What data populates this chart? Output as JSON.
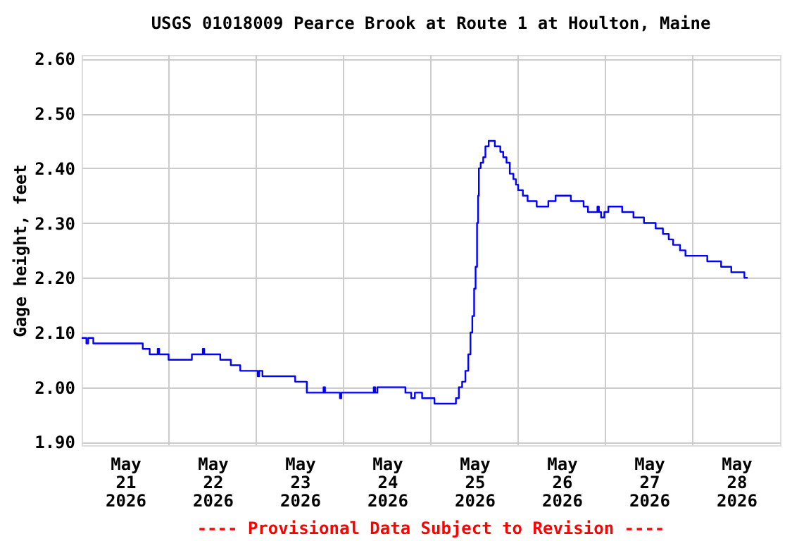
{
  "chart_data": {
    "type": "step",
    "title": "USGS 01018009 Pearce Brook at Route 1 at Houlton, Maine",
    "ylabel": "Gage height, feet",
    "annotations": [
      "---- Provisional Data Subject to Revision ----"
    ],
    "x": [
      "2026-05-21T00:00",
      "2026-05-21T01:18",
      "2026-05-21T01:48",
      "2026-05-21T03:12",
      "2026-05-21T16:48",
      "2026-05-21T18:42",
      "2026-05-21T20:54",
      "2026-05-21T21:18",
      "2026-05-21T23:54",
      "2026-05-22T06:18",
      "2026-05-22T09:18",
      "2026-05-22T09:42",
      "2026-05-22T14:06",
      "2026-05-22T17:00",
      "2026-05-22T19:36",
      "2026-05-23T00:24",
      "2026-05-23T00:48",
      "2026-05-23T01:42",
      "2026-05-23T10:42",
      "2026-05-23T13:54",
      "2026-05-23T18:30",
      "2026-05-23T18:54",
      "2026-05-23T23:00",
      "2026-05-23T23:24",
      "2026-05-24T08:18",
      "2026-05-24T08:42",
      "2026-05-24T09:18",
      "2026-05-24T17:00",
      "2026-05-24T18:36",
      "2026-05-24T19:36",
      "2026-05-24T21:36",
      "2026-05-25T01:00",
      "2026-05-25T06:54",
      "2026-05-25T07:42",
      "2026-05-25T08:36",
      "2026-05-25T09:30",
      "2026-05-25T10:18",
      "2026-05-25T10:54",
      "2026-05-25T11:24",
      "2026-05-25T11:54",
      "2026-05-25T12:18",
      "2026-05-25T12:42",
      "2026-05-25T13:00",
      "2026-05-25T13:12",
      "2026-05-25T13:42",
      "2026-05-25T14:24",
      "2026-05-25T15:00",
      "2026-05-25T15:54",
      "2026-05-25T17:36",
      "2026-05-25T19:06",
      "2026-05-25T19:54",
      "2026-05-25T20:48",
      "2026-05-25T21:42",
      "2026-05-25T22:42",
      "2026-05-25T23:24",
      "2026-05-26T00:00",
      "2026-05-26T01:18",
      "2026-05-26T02:36",
      "2026-05-26T05:06",
      "2026-05-26T08:18",
      "2026-05-26T10:18",
      "2026-05-26T14:30",
      "2026-05-26T18:00",
      "2026-05-26T19:12",
      "2026-05-26T21:48",
      "2026-05-26T22:12",
      "2026-05-26T22:48",
      "2026-05-26T23:42",
      "2026-05-27T00:48",
      "2026-05-27T04:36",
      "2026-05-27T07:42",
      "2026-05-27T10:36",
      "2026-05-27T13:48",
      "2026-05-27T15:48",
      "2026-05-27T17:24",
      "2026-05-27T18:36",
      "2026-05-27T20:30",
      "2026-05-27T22:00",
      "2026-05-28T04:00",
      "2026-05-28T07:48",
      "2026-05-28T10:36",
      "2026-05-28T14:12",
      "2026-05-28T15:06"
    ],
    "series": [
      {
        "color": "#0000ff",
        "values": [
          2.09,
          2.08,
          2.09,
          2.08,
          2.07,
          2.06,
          2.07,
          2.06,
          2.05,
          2.06,
          2.07,
          2.06,
          2.05,
          2.04,
          2.03,
          2.02,
          2.03,
          2.02,
          2.01,
          1.99,
          2.0,
          1.99,
          1.98,
          1.99,
          2.0,
          1.99,
          2.0,
          1.99,
          1.98,
          1.99,
          1.98,
          1.97,
          1.98,
          2.0,
          2.01,
          2.03,
          2.06,
          2.1,
          2.13,
          2.18,
          2.22,
          2.3,
          2.35,
          2.4,
          2.41,
          2.42,
          2.44,
          2.45,
          2.44,
          2.43,
          2.42,
          2.41,
          2.39,
          2.38,
          2.37,
          2.36,
          2.35,
          2.34,
          2.33,
          2.34,
          2.35,
          2.34,
          2.33,
          2.32,
          2.33,
          2.32,
          2.31,
          2.32,
          2.33,
          2.32,
          2.31,
          2.3,
          2.29,
          2.28,
          2.27,
          2.26,
          2.25,
          2.24,
          2.23,
          2.22,
          2.21,
          2.2,
          2.2
        ]
      }
    ],
    "xlim": [
      "2026-05-21T00:00",
      "2026-05-29T00:00"
    ],
    "xticks": [
      {
        "value": "2026-05-21T12:00",
        "label": "May\n21\n2026"
      },
      {
        "value": "2026-05-22T12:00",
        "label": "May\n22\n2026"
      },
      {
        "value": "2026-05-23T12:00",
        "label": "May\n23\n2026"
      },
      {
        "value": "2026-05-24T12:00",
        "label": "May\n24\n2026"
      },
      {
        "value": "2026-05-25T12:00",
        "label": "May\n25\n2026"
      },
      {
        "value": "2026-05-26T12:00",
        "label": "May\n26\n2026"
      },
      {
        "value": "2026-05-27T12:00",
        "label": "May\n27\n2026"
      },
      {
        "value": "2026-05-28T12:00",
        "label": "May\n28\n2026"
      },
      {
        "value": "2026-05-22T00:00",
        "label": null
      },
      {
        "value": "2026-05-23T00:00",
        "label": null
      },
      {
        "value": "2026-05-24T00:00",
        "label": null
      },
      {
        "value": "2026-05-25T00:00",
        "label": null
      },
      {
        "value": "2026-05-26T00:00",
        "label": null
      },
      {
        "value": "2026-05-27T00:00",
        "label": null
      },
      {
        "value": "2026-05-28T00:00",
        "label": null
      }
    ],
    "ylim": [
      1.894,
      2.607
    ],
    "yticks": [
      {
        "value": 1.9,
        "label": "1.90"
      },
      {
        "value": 2.0,
        "label": "2.00"
      },
      {
        "value": 2.1,
        "label": "2.10"
      },
      {
        "value": 2.2,
        "label": "2.20"
      },
      {
        "value": 2.3,
        "label": "2.30"
      },
      {
        "value": 2.4,
        "label": "2.40"
      },
      {
        "value": 2.5,
        "label": "2.50"
      },
      {
        "value": 2.6,
        "label": "2.60"
      }
    ],
    "grid": true,
    "marker": "none",
    "line_style": "solid"
  }
}
